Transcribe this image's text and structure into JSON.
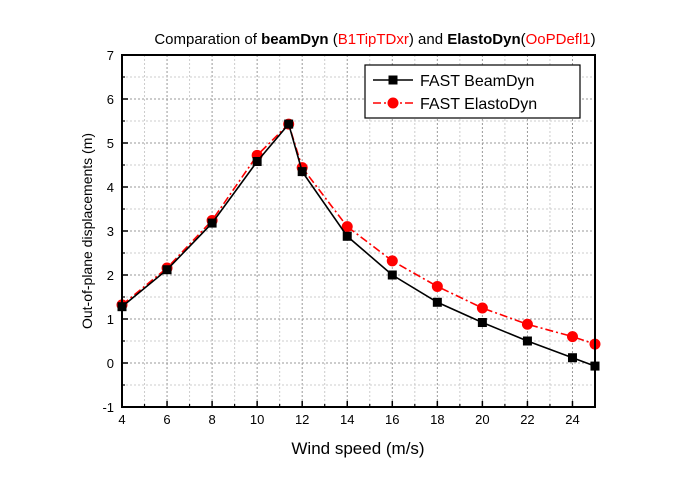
{
  "chart_data": {
    "type": "line",
    "title_parts": [
      {
        "text": "Comparation of ",
        "color": "#000000",
        "bold": false
      },
      {
        "text": "beamDyn",
        "color": "#000000",
        "bold": true
      },
      {
        "text": " (",
        "color": "#000000",
        "bold": false
      },
      {
        "text": "B1TipTDxr",
        "color": "#ff0000",
        "bold": false
      },
      {
        "text": ") and ",
        "color": "#000000",
        "bold": false
      },
      {
        "text": "ElastoDyn",
        "color": "#000000",
        "bold": true
      },
      {
        "text": "(",
        "color": "#000000",
        "bold": false
      },
      {
        "text": "OoPDefl1",
        "color": "#ff0000",
        "bold": false
      },
      {
        "text": ")",
        "color": "#000000",
        "bold": false
      }
    ],
    "xlabel": "Wind speed (m/s)",
    "ylabel": "Out-of-plane displacements (m)",
    "xlim": [
      4,
      25
    ],
    "ylim": [
      -1,
      7
    ],
    "xticks": [
      "4",
      "6",
      "8",
      "10",
      "12",
      "14",
      "16",
      "18",
      "20",
      "22",
      "24"
    ],
    "yticks": [
      "-1",
      "0",
      "1",
      "2",
      "3",
      "4",
      "5",
      "6",
      "7"
    ],
    "grid": true,
    "legend_position": "top-right",
    "series": [
      {
        "name": "FAST BeamDyn",
        "color": "#000000",
        "marker": "square",
        "line": "solid",
        "x": [
          4,
          6,
          8,
          10,
          11.4,
          12,
          14,
          16,
          18,
          20,
          22,
          24,
          25
        ],
        "y": [
          1.28,
          2.12,
          3.18,
          4.58,
          5.43,
          4.35,
          2.88,
          2.0,
          1.38,
          0.92,
          0.5,
          0.12,
          -0.07
        ]
      },
      {
        "name": "FAST ElastoDyn",
        "color": "#ff0000",
        "marker": "circle",
        "line": "dash-dot",
        "x": [
          4,
          6,
          8,
          10,
          11.4,
          12,
          14,
          16,
          18,
          20,
          22,
          24,
          25
        ],
        "y": [
          1.32,
          2.16,
          3.24,
          4.72,
          5.43,
          4.44,
          3.1,
          2.32,
          1.74,
          1.25,
          0.88,
          0.6,
          0.43
        ]
      }
    ]
  }
}
